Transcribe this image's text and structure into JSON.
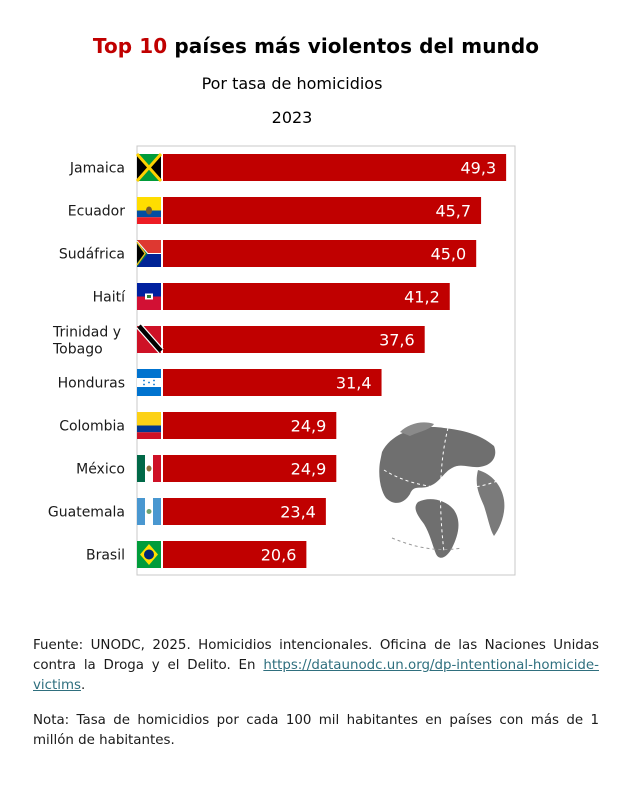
{
  "title": {
    "highlight": "Top 10",
    "rest": "países más violentos del mundo"
  },
  "subtitle": "Por tasa de homicidios",
  "year": "2023",
  "chart_data": {
    "type": "bar",
    "orientation": "horizontal",
    "categories": [
      "Jamaica",
      "Ecuador",
      "Sudáfrica",
      "Haití",
      "Trinidad y Tobago",
      "Honduras",
      "Colombia",
      "México",
      "Guatemala",
      "Brasil"
    ],
    "category_lines": [
      [
        "Jamaica"
      ],
      [
        "Ecuador"
      ],
      [
        "Sudáfrica"
      ],
      [
        "Haití"
      ],
      [
        "Trinidad y",
        "Tobago"
      ],
      [
        "Honduras"
      ],
      [
        "Colombia"
      ],
      [
        "México"
      ],
      [
        "Guatemala"
      ],
      [
        "Brasil"
      ]
    ],
    "values": [
      49.3,
      45.7,
      45.0,
      41.2,
      37.6,
      31.4,
      24.9,
      24.9,
      23.4,
      20.6
    ],
    "value_labels": [
      "49,3",
      "45,7",
      "45,0",
      "41,2",
      "37,6",
      "31,4",
      "24,9",
      "24,9",
      "23,4",
      "20,6"
    ],
    "xlim": [
      0,
      50
    ],
    "bar_color": "#c00000",
    "grid": false,
    "icons": [
      "flag-jamaica",
      "flag-ecuador",
      "flag-south-africa",
      "flag-haiti",
      "flag-trinidad-tobago",
      "flag-honduras",
      "flag-colombia",
      "flag-mexico",
      "flag-guatemala",
      "flag-brazil",
      "globe-icon"
    ]
  },
  "footer": {
    "source_text": "Fuente: UNODC, 2025. Homicidios intencionales. Oficina de las Naciones Unidas contra la Droga y el Delito. En ",
    "source_link": "https://dataunodc.un.org/dp-intentional-homicide-victims",
    "source_end": ".",
    "note": "Nota: Tasa de homicidios por cada 100 mil habitantes en países con más de 1 millón de habitantes."
  }
}
